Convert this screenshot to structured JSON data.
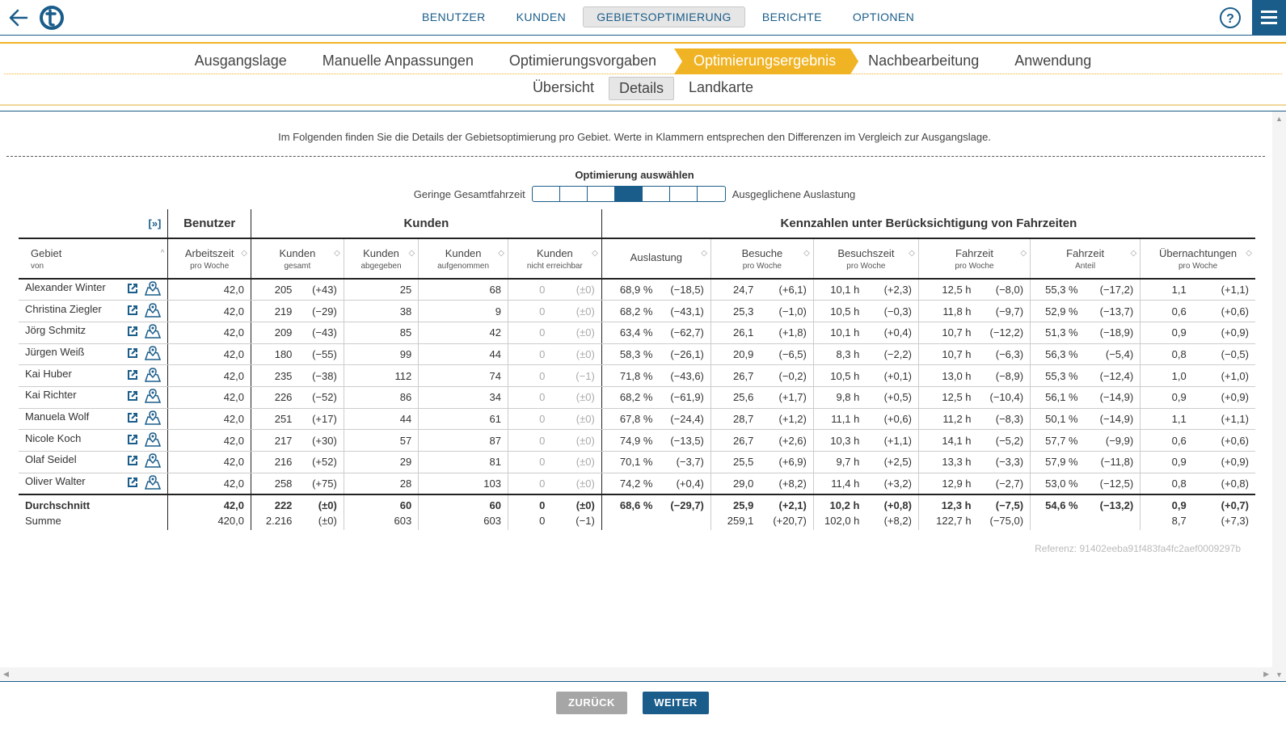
{
  "topbar": {
    "nav": [
      "BENUTZER",
      "KUNDEN",
      "GEBIETSOPTIMIERUNG",
      "BERICHTE",
      "OPTIONEN"
    ],
    "active_nav": 2,
    "help": "?"
  },
  "steps": {
    "items": [
      "Ausgangslage",
      "Manuelle Anpassungen",
      "Optimierungsvorgaben",
      "Optimierungsergebnis",
      "Nachbearbeitung",
      "Anwendung"
    ],
    "active": 3
  },
  "subtabs": {
    "items": [
      "Übersicht",
      "Details",
      "Landkarte"
    ],
    "active": 1
  },
  "intro": "Im Folgenden finden Sie die Details der Gebietsoptimierung pro Gebiet. Werte in Klammern entsprechen den Differenzen im Vergleich zur Ausgangslage.",
  "optimizer": {
    "title": "Optimierung auswählen",
    "left_label": "Geringe Gesamtfahrzeit",
    "right_label": "Ausgeglichene Auslastung",
    "segments": 7,
    "selected": 3
  },
  "table": {
    "expand_label": "[»]",
    "groups": [
      "Benutzer",
      "Kunden",
      "Kennzahlen unter Berücksichtigung von Fahrzeiten"
    ],
    "columns": [
      {
        "title": "Gebiet",
        "sub": "von"
      },
      {
        "title": "Arbeitszeit",
        "sub": "pro Woche"
      },
      {
        "title": "Kunden",
        "sub": "gesamt"
      },
      {
        "title": "Kunden",
        "sub": "abgegeben"
      },
      {
        "title": "Kunden",
        "sub": "aufgenommen"
      },
      {
        "title": "Kunden",
        "sub": "nicht erreichbar"
      },
      {
        "title": "Auslastung",
        "sub": ""
      },
      {
        "title": "Besuche",
        "sub": "pro Woche"
      },
      {
        "title": "Besuchszeit",
        "sub": "pro Woche"
      },
      {
        "title": "Fahrzeit",
        "sub": "pro Woche"
      },
      {
        "title": "Fahrzeit",
        "sub": "Anteil"
      },
      {
        "title": "Übernachtungen",
        "sub": "pro Woche"
      }
    ],
    "rows": [
      [
        "Alexander Winter",
        "42,0",
        "205",
        "(+43)",
        "25",
        "68",
        "0",
        "(±0)",
        "68,9 %",
        "(−18,5)",
        "24,7",
        "(+6,1)",
        "10,1 h",
        "(+2,3)",
        "12,5 h",
        "(−8,0)",
        "55,3 %",
        "(−17,2)",
        "1,1",
        "(+1,1)"
      ],
      [
        "Christina Ziegler",
        "42,0",
        "219",
        "(−29)",
        "38",
        "9",
        "0",
        "(±0)",
        "68,2 %",
        "(−43,1)",
        "25,3",
        "(−1,0)",
        "10,5 h",
        "(−0,3)",
        "11,8 h",
        "(−9,7)",
        "52,9 %",
        "(−13,7)",
        "0,6",
        "(+0,6)"
      ],
      [
        "Jörg Schmitz",
        "42,0",
        "209",
        "(−43)",
        "85",
        "42",
        "0",
        "(±0)",
        "63,4 %",
        "(−62,7)",
        "26,1",
        "(+1,8)",
        "10,1 h",
        "(+0,4)",
        "10,7 h",
        "(−12,2)",
        "51,3 %",
        "(−18,9)",
        "0,9",
        "(+0,9)"
      ],
      [
        "Jürgen Weiß",
        "42,0",
        "180",
        "(−55)",
        "99",
        "44",
        "0",
        "(±0)",
        "58,3 %",
        "(−26,1)",
        "20,9",
        "(−6,5)",
        "8,3 h",
        "(−2,2)",
        "10,7 h",
        "(−6,3)",
        "56,3 %",
        "(−5,4)",
        "0,8",
        "(−0,5)"
      ],
      [
        "Kai Huber",
        "42,0",
        "235",
        "(−38)",
        "112",
        "74",
        "0",
        "(−1)",
        "71,8 %",
        "(−43,6)",
        "26,7",
        "(−0,2)",
        "10,5 h",
        "(+0,1)",
        "13,0 h",
        "(−8,9)",
        "55,3 %",
        "(−12,4)",
        "1,0",
        "(+1,0)"
      ],
      [
        "Kai Richter",
        "42,0",
        "226",
        "(−52)",
        "86",
        "34",
        "0",
        "(±0)",
        "68,2 %",
        "(−61,9)",
        "25,6",
        "(+1,7)",
        "9,8 h",
        "(+0,5)",
        "12,5 h",
        "(−10,4)",
        "56,1 %",
        "(−14,9)",
        "0,9",
        "(+0,9)"
      ],
      [
        "Manuela Wolf",
        "42,0",
        "251",
        "(+17)",
        "44",
        "61",
        "0",
        "(±0)",
        "67,8 %",
        "(−24,4)",
        "28,7",
        "(+1,2)",
        "11,1 h",
        "(+0,6)",
        "11,2 h",
        "(−8,3)",
        "50,1 %",
        "(−14,9)",
        "1,1",
        "(+1,1)"
      ],
      [
        "Nicole Koch",
        "42,0",
        "217",
        "(+30)",
        "57",
        "87",
        "0",
        "(±0)",
        "74,9 %",
        "(−13,5)",
        "26,7",
        "(+2,6)",
        "10,3 h",
        "(+1,1)",
        "14,1 h",
        "(−5,2)",
        "57,7 %",
        "(−9,9)",
        "0,6",
        "(+0,6)"
      ],
      [
        "Olaf Seidel",
        "42,0",
        "216",
        "(+52)",
        "29",
        "81",
        "0",
        "(±0)",
        "70,1 %",
        "(−3,7)",
        "25,5",
        "(+6,9)",
        "9,7 h",
        "(+2,5)",
        "13,3 h",
        "(−3,3)",
        "57,9 %",
        "(−11,8)",
        "0,9",
        "(+0,9)"
      ],
      [
        "Oliver Walter",
        "42,0",
        "258",
        "(+75)",
        "28",
        "103",
        "0",
        "(±0)",
        "74,2 %",
        "(+0,4)",
        "29,0",
        "(+8,2)",
        "11,4 h",
        "(+3,2)",
        "12,9 h",
        "(−2,7)",
        "53,0 %",
        "(−12,5)",
        "0,8",
        "(+0,8)"
      ]
    ],
    "average": [
      "Durchschnitt",
      "42,0",
      "222",
      "(±0)",
      "60",
      "60",
      "0",
      "(±0)",
      "68,6 %",
      "(−29,7)",
      "25,9",
      "(+2,1)",
      "10,2 h",
      "(+0,8)",
      "12,3 h",
      "(−7,5)",
      "54,6 %",
      "(−13,2)",
      "0,9",
      "(+0,7)"
    ],
    "sum": [
      "Summe",
      "420,0",
      "2.216",
      "(±0)",
      "603",
      "603",
      "0",
      "(−1)",
      "",
      "",
      "259,1",
      "(+20,7)",
      "102,0 h",
      "(+8,2)",
      "122,7 h",
      "(−75,0)",
      "",
      "",
      "8,7",
      "(+7,3)"
    ]
  },
  "reference": "Referenz: 91402eeba91f483fa4fc2aef0009297b",
  "buttons": {
    "back": "ZURÜCK",
    "next": "WEITER"
  },
  "colors": {
    "primary": "#1a5d8a",
    "accent": "#f0b323"
  }
}
